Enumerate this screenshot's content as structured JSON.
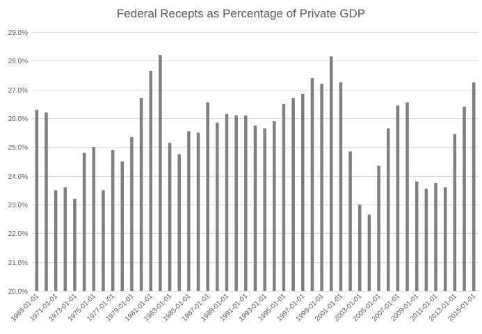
{
  "chart_data": {
    "type": "bar",
    "title": "Federal Recepts as Percentage of Private GDP",
    "xlabel": "",
    "ylabel": "",
    "ylim": [
      20.0,
      29.0
    ],
    "yticks": [
      "20.0%",
      "21.0%",
      "22.0%",
      "23.0%",
      "24.0%",
      "25.0%",
      "26.0%",
      "27.0%",
      "28.0%",
      "29.0%"
    ],
    "grid": true,
    "bar_color": "#7f7f7f",
    "categories": [
      "1969-01-01",
      "1970-01-01",
      "1971-01-01",
      "1972-01-01",
      "1973-01-01",
      "1974-01-01",
      "1975-01-01",
      "1976-01-01",
      "1977-01-01",
      "1978-01-01",
      "1979-01-01",
      "1980-01-01",
      "1981-01-01",
      "1982-01-01",
      "1983-01-01",
      "1984-01-01",
      "1985-01-01",
      "1986-01-01",
      "1987-01-01",
      "1988-01-01",
      "1989-01-01",
      "1990-01-01",
      "1991-01-01",
      "1992-01-01",
      "1993-01-01",
      "1994-01-01",
      "1995-01-01",
      "1996-01-01",
      "1997-01-01",
      "1998-01-01",
      "1999-01-01",
      "2000-01-01",
      "2001-01-01",
      "2002-01-01",
      "2003-01-01",
      "2004-01-01",
      "2005-01-01",
      "2006-01-01",
      "2007-01-01",
      "2008-01-01",
      "2009-01-01",
      "2010-01-01",
      "2011-01-01",
      "2012-01-01",
      "2013-01-01",
      "2014-01-01",
      "2015-01-01"
    ],
    "xtick_labels": [
      "1969-01-01",
      "1971-01-01",
      "1973-01-01",
      "1975-01-01",
      "1977-01-01",
      "1979-01-01",
      "1981-01-01",
      "1983-01-01",
      "1985-01-01",
      "1987-01-01",
      "1989-01-01",
      "1991-01-01",
      "1993-01-01",
      "1995-01-01",
      "1997-01-01",
      "1999-01-01",
      "2001-01-01",
      "2003-01-01",
      "2005-01-01",
      "2007-01-01",
      "2009-01-01",
      "2011-01-01",
      "2013-01-01",
      "2015-01-01"
    ],
    "values": [
      26.3,
      26.2,
      23.5,
      23.6,
      23.2,
      24.8,
      25.0,
      23.5,
      24.9,
      24.5,
      25.35,
      26.7,
      27.65,
      28.2,
      25.15,
      24.75,
      25.55,
      25.5,
      26.55,
      25.85,
      26.15,
      26.1,
      26.1,
      25.75,
      25.65,
      25.9,
      26.5,
      26.7,
      26.85,
      27.4,
      27.2,
      28.15,
      27.25,
      24.85,
      23.0,
      22.65,
      24.35,
      25.65,
      26.45,
      26.55,
      23.8,
      23.55,
      23.75,
      23.6,
      25.45,
      26.4,
      27.25
    ]
  }
}
